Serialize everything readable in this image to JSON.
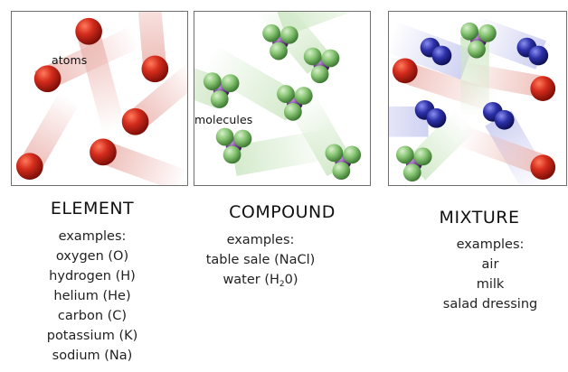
{
  "panels": {
    "element": {
      "annotation": "atoms",
      "title": "ELEMENT",
      "examples_heading": "examples:",
      "examples": [
        "oxygen (O)",
        "hydrogen (H)",
        "helium (He)",
        "carbon (C)",
        "potassium (K)",
        "sodium (Na)"
      ]
    },
    "compound": {
      "annotation": "molecules",
      "title": "COMPOUND",
      "examples_heading": "examples:",
      "examples": [
        "table sale (NaCl)"
      ],
      "water": {
        "pre": "water (H",
        "sub": "2",
        "post": "0)"
      }
    },
    "mixture": {
      "title": "MIXTURE",
      "examples_heading": "examples:",
      "examples": [
        "air",
        "milk",
        "salad dressing"
      ]
    }
  },
  "colors": {
    "atom_red": "#c8261a",
    "atom_green": "#7cc06a",
    "atom_purple": "#7a3f99",
    "atom_blue": "#2a2e9c",
    "trail_red": "#e8a9a2",
    "trail_green": "#cfe8c6",
    "trail_blue": "#c9cbee"
  },
  "icons": [
    "red-atom-icon",
    "green-purple-molecule-icon",
    "blue-molecule-icon"
  ]
}
